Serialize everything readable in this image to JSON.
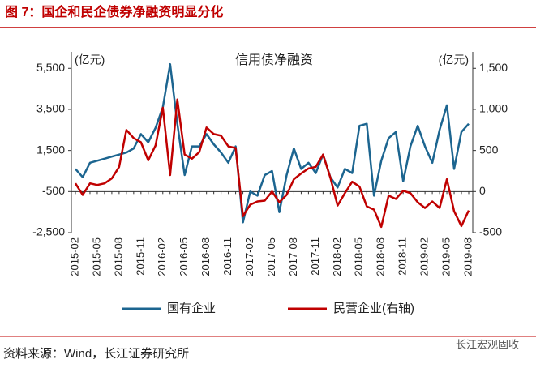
{
  "figure_title": "图 7：国企和民企债券净融资明显分化",
  "source": "资料来源：Wind，长江证券研究所",
  "watermark": "长江宏观固收",
  "chart_data": {
    "type": "line",
    "title": "信用债净融资",
    "y_label": "(亿元)",
    "y2_label": "(亿元)",
    "categories": [
      "2015-02",
      null,
      null,
      "2015-05",
      null,
      null,
      "2015-08",
      null,
      null,
      "2015-11",
      null,
      null,
      "2016-02",
      null,
      null,
      "2016-05",
      null,
      null,
      "2016-08",
      null,
      null,
      "2016-11",
      null,
      null,
      "2017-02",
      null,
      null,
      "2017-05",
      null,
      null,
      "2017-08",
      null,
      null,
      "2017-11",
      null,
      null,
      "2018-02",
      null,
      null,
      "2018-05",
      null,
      null,
      "2018-08",
      null,
      null,
      "2018-11",
      null,
      null,
      "2019-02",
      null,
      null,
      "2019-05",
      null,
      null,
      "2019-08"
    ],
    "series": [
      {
        "name": "国有企业",
        "color": "#1c6590",
        "axis": "y",
        "values": [
          600,
          200,
          900,
          1000,
          1100,
          1200,
          1300,
          1400,
          1600,
          2300,
          1900,
          2600,
          3600,
          5700,
          2800,
          300,
          1700,
          1700,
          2300,
          1800,
          1400,
          900,
          1700,
          -2000,
          -500,
          -700,
          300,
          500,
          -1500,
          300,
          1600,
          600,
          900,
          400,
          1300,
          200,
          -300,
          600,
          400,
          2700,
          2800,
          -700,
          1000,
          2100,
          2400,
          0,
          1700,
          2700,
          1700,
          900,
          2500,
          3700,
          600,
          2400,
          2800
        ]
      },
      {
        "name": "民营企业(右轴)",
        "color": "#c00000",
        "axis": "y2",
        "values": [
          100,
          -40,
          100,
          80,
          100,
          160,
          300,
          750,
          650,
          600,
          380,
          560,
          1020,
          200,
          1120,
          450,
          400,
          480,
          780,
          700,
          680,
          550,
          530,
          -300,
          -160,
          -120,
          -110,
          0,
          -130,
          -40,
          150,
          220,
          280,
          300,
          450,
          170,
          -170,
          -20,
          120,
          60,
          -180,
          -220,
          -430,
          -50,
          -90,
          10,
          -20,
          -130,
          -200,
          -120,
          -200,
          150,
          -240,
          -420,
          -230
        ]
      }
    ],
    "ylim": [
      -2500,
      6300
    ],
    "yticks": [
      {
        "value": -2500,
        "label": "-2,500"
      },
      -500,
      {
        "value": 1500,
        "label": "1,500"
      },
      {
        "value": 3500,
        "label": "3,500"
      },
      {
        "value": 5500,
        "label": "5,500"
      }
    ],
    "y2lim": [
      -500,
      1700
    ],
    "y2ticks": [
      -500,
      0,
      500,
      {
        "value": 1000,
        "label": "1,000"
      },
      {
        "value": 1500,
        "label": "1,500"
      }
    ]
  }
}
